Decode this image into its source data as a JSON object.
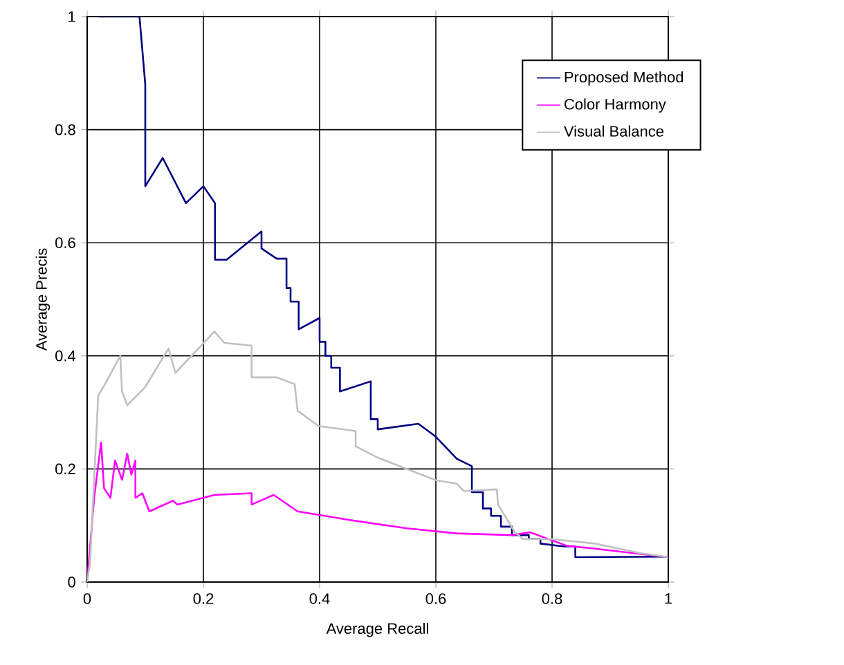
{
  "chart_data": {
    "type": "line",
    "xlabel": "Average Recall",
    "ylabel": "Average Precis",
    "xlim": [
      0,
      1
    ],
    "ylim": [
      0,
      1
    ],
    "xticks": [
      0,
      0.2,
      0.4,
      0.6,
      0.8,
      1
    ],
    "yticks": [
      0,
      0.2,
      0.4,
      0.6,
      0.8,
      1
    ],
    "grid": true,
    "legend": "top right",
    "marker": "none",
    "line_style": "solid",
    "series": [
      {
        "name": "Proposed Method",
        "color": "#000080",
        "x": [
          0.02,
          0.09,
          0.1,
          0.1,
          0.13,
          0.17,
          0.2,
          0.22,
          0.22,
          0.24,
          0.3,
          0.3,
          0.326,
          0.343,
          0.343,
          0.35,
          0.35,
          0.364,
          0.364,
          0.4,
          0.4,
          0.41,
          0.41,
          0.42,
          0.42,
          0.435,
          0.435,
          0.488,
          0.488,
          0.5,
          0.5,
          0.57,
          0.6,
          0.636,
          0.636,
          0.662,
          0.662,
          0.681,
          0.681,
          0.695,
          0.695,
          0.712,
          0.712,
          0.731,
          0.731,
          0.76,
          0.76,
          0.78,
          0.78,
          0.82,
          0.84,
          0.84,
          1.0
        ],
        "values": [
          1.0,
          1.0,
          0.88,
          0.7,
          0.75,
          0.67,
          0.7,
          0.67,
          0.57,
          0.57,
          0.62,
          0.59,
          0.572,
          0.572,
          0.52,
          0.52,
          0.496,
          0.496,
          0.447,
          0.467,
          0.425,
          0.425,
          0.4,
          0.4,
          0.379,
          0.379,
          0.337,
          0.355,
          0.288,
          0.288,
          0.27,
          0.28,
          0.257,
          0.218,
          0.218,
          0.205,
          0.159,
          0.159,
          0.13,
          0.13,
          0.117,
          0.117,
          0.098,
          0.098,
          0.083,
          0.083,
          0.076,
          0.076,
          0.068,
          0.063,
          0.063,
          0.044,
          0.045
        ]
      },
      {
        "name": "Color Harmony",
        "color": "#ff00ff",
        "x": [
          0,
          0.012,
          0.024,
          0.029,
          0.04,
          0.048,
          0.06,
          0.069,
          0.076,
          0.083,
          0.083,
          0.095,
          0.107,
          0.148,
          0.155,
          0.219,
          0.283,
          0.283,
          0.321,
          0.362,
          0.45,
          0.55,
          0.636,
          0.731,
          0.762,
          0.826,
          0.874,
          1.0
        ],
        "values": [
          0,
          0.149,
          0.247,
          0.166,
          0.149,
          0.215,
          0.181,
          0.227,
          0.19,
          0.215,
          0.149,
          0.157,
          0.125,
          0.144,
          0.137,
          0.154,
          0.157,
          0.137,
          0.154,
          0.125,
          0.11,
          0.095,
          0.086,
          0.083,
          0.088,
          0.064,
          0.059,
          0.044
        ]
      },
      {
        "name": "Visual Balance",
        "color": "#c0c0c0",
        "x": [
          0,
          0.005,
          0.019,
          0.028,
          0.057,
          0.06,
          0.069,
          0.1,
          0.14,
          0.152,
          0.219,
          0.236,
          0.283,
          0.283,
          0.326,
          0.357,
          0.362,
          0.398,
          0.462,
          0.462,
          0.5,
          0.55,
          0.6,
          0.636,
          0.648,
          0.705,
          0.707,
          0.736,
          0.75,
          0.798,
          0.874,
          0.952,
          1.0
        ],
        "values": [
          0,
          0.034,
          0.33,
          0.345,
          0.4,
          0.337,
          0.313,
          0.345,
          0.413,
          0.37,
          0.443,
          0.423,
          0.418,
          0.362,
          0.362,
          0.35,
          0.303,
          0.276,
          0.267,
          0.24,
          0.22,
          0.2,
          0.18,
          0.174,
          0.161,
          0.164,
          0.137,
          0.088,
          0.076,
          0.076,
          0.068,
          0.051,
          0.044
        ]
      }
    ]
  }
}
